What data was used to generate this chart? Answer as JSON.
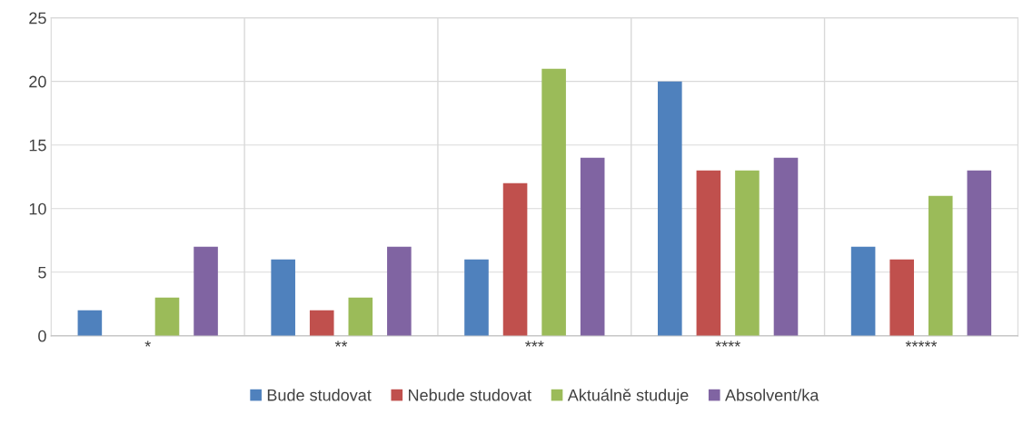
{
  "chart_data": {
    "type": "bar",
    "categories": [
      "*",
      "**",
      "***",
      "****",
      "*****"
    ],
    "series": [
      {
        "name": "Bude studovat",
        "color": "#4f81bd",
        "values": [
          2,
          6,
          6,
          20,
          7
        ]
      },
      {
        "name": "Nebude studovat",
        "color": "#c0504d",
        "values": [
          0,
          2,
          12,
          13,
          6
        ]
      },
      {
        "name": "Aktuálně studuje",
        "color": "#9bbb59",
        "values": [
          3,
          3,
          21,
          13,
          11
        ]
      },
      {
        "name": "Absolvent/ka",
        "color": "#8064a2",
        "values": [
          7,
          7,
          14,
          14,
          13
        ]
      }
    ],
    "ylim": [
      0,
      25
    ],
    "yticks": [
      0,
      5,
      10,
      15,
      20,
      25
    ],
    "grid": "y",
    "legend": "bottom"
  }
}
